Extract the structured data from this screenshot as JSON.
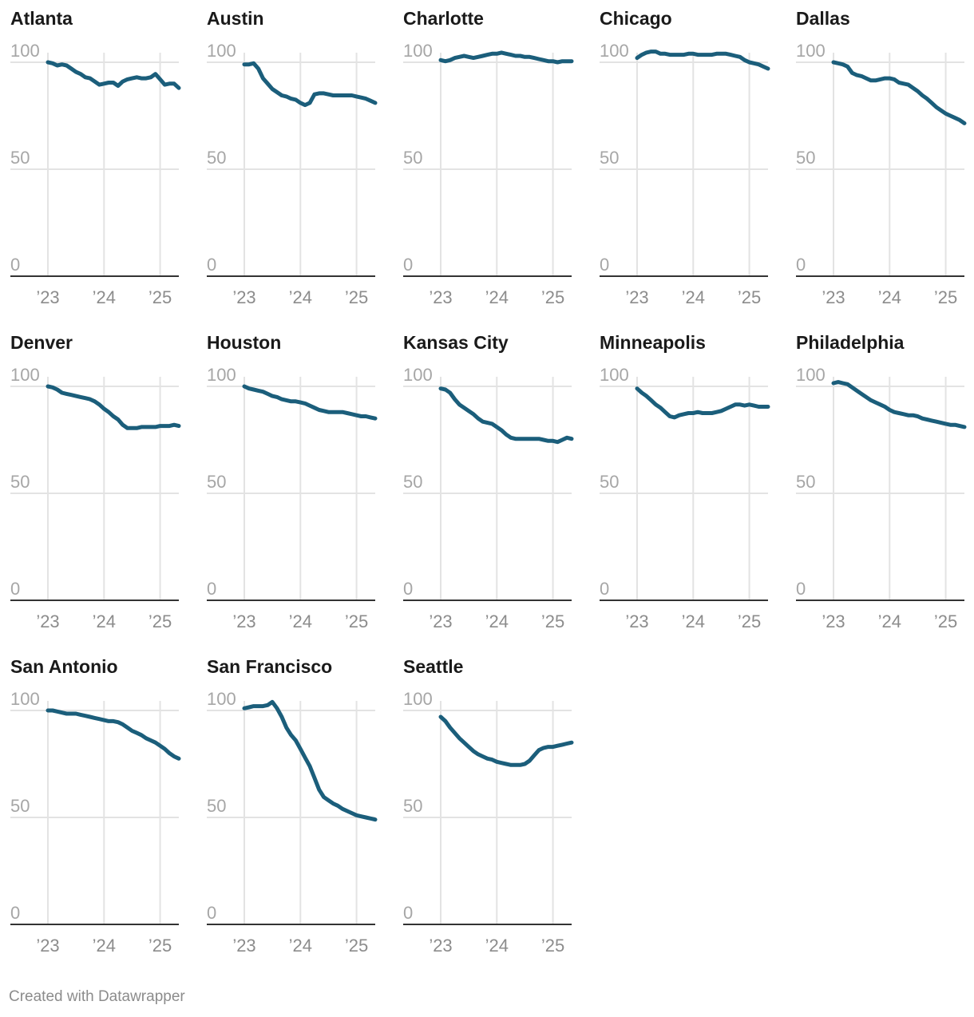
{
  "chart_data": {
    "type": "line",
    "layout": "small-multiples",
    "y_ticks": [
      100,
      50,
      0
    ],
    "ylim": [
      0,
      100
    ],
    "x_tick_labels": [
      "’23",
      "’24",
      "’25"
    ],
    "x_tick_values": [
      0,
      12,
      24
    ],
    "x_range": [
      0,
      28
    ],
    "line_color": "#1b5e7b",
    "panels": [
      {
        "name": "Atlanta",
        "x": [
          0,
          1,
          2,
          3,
          4,
          5,
          6,
          7,
          8,
          9,
          10,
          11,
          12,
          13,
          14,
          15,
          16,
          17,
          18,
          19,
          20,
          21,
          22,
          23,
          24,
          25,
          26,
          27,
          28
        ],
        "values": [
          100,
          99.5,
          98.5,
          99,
          98.5,
          97,
          95.5,
          94.5,
          93,
          92.5,
          91,
          89.5,
          90,
          90.5,
          90.5,
          89,
          91,
          92,
          92.5,
          93,
          92.5,
          92.5,
          93,
          94.5,
          92,
          89.5,
          90,
          90,
          88
        ]
      },
      {
        "name": "Austin",
        "x": [
          0,
          1,
          2,
          3,
          4,
          5,
          6,
          7,
          8,
          9,
          10,
          11,
          12,
          13,
          14,
          15,
          16,
          17,
          18,
          19,
          20,
          21,
          22,
          23,
          24,
          25,
          26,
          27,
          28
        ],
        "values": [
          99,
          99,
          99.5,
          97,
          92.5,
          90,
          87.5,
          86,
          84.5,
          84,
          83,
          82.5,
          81,
          80,
          81,
          85,
          85.5,
          85.5,
          85,
          84.5,
          84.5,
          84.5,
          84.5,
          84.5,
          84,
          83.5,
          83,
          82,
          81
        ]
      },
      {
        "name": "Charlotte",
        "x": [
          0,
          1,
          2,
          3,
          4,
          5,
          6,
          7,
          8,
          9,
          10,
          11,
          12,
          13,
          14,
          15,
          16,
          17,
          18,
          19,
          20,
          21,
          22,
          23,
          24,
          25,
          26,
          27,
          28
        ],
        "values": [
          101,
          100.5,
          101,
          102,
          102.5,
          103,
          102.5,
          102,
          102.5,
          103,
          103.5,
          104,
          104,
          104.5,
          104,
          103.5,
          103,
          103,
          102.5,
          102.5,
          102,
          101.5,
          101,
          100.5,
          100.5,
          100,
          100.5,
          100.5,
          100.5
        ]
      },
      {
        "name": "Chicago",
        "x": [
          0,
          1,
          2,
          3,
          4,
          5,
          6,
          7,
          8,
          9,
          10,
          11,
          12,
          13,
          14,
          15,
          16,
          17,
          18,
          19,
          20,
          21,
          22,
          23,
          24,
          25,
          26,
          27,
          28
        ],
        "values": [
          102,
          103.5,
          104.5,
          105,
          105,
          104,
          104,
          103.5,
          103.5,
          103.5,
          103.5,
          104,
          104,
          103.5,
          103.5,
          103.5,
          103.5,
          104,
          104,
          104,
          103.5,
          103,
          102.5,
          101,
          100,
          99.5,
          99,
          98,
          97
        ]
      },
      {
        "name": "Dallas",
        "x": [
          0,
          1,
          2,
          3,
          4,
          5,
          6,
          7,
          8,
          9,
          10,
          11,
          12,
          13,
          14,
          15,
          16,
          17,
          18,
          19,
          20,
          21,
          22,
          23,
          24,
          25,
          26,
          27,
          28
        ],
        "values": [
          100,
          99.5,
          99,
          98,
          95,
          94,
          93.5,
          92.5,
          91.5,
          91.5,
          92,
          92.5,
          92.5,
          92,
          90.5,
          90,
          89.5,
          88,
          86.5,
          84.5,
          83,
          81,
          79,
          77.5,
          76,
          75,
          74,
          73,
          71.5
        ]
      },
      {
        "name": "Denver",
        "x": [
          0,
          1,
          2,
          3,
          4,
          5,
          6,
          7,
          8,
          9,
          10,
          11,
          12,
          13,
          14,
          15,
          16,
          17,
          18,
          19,
          20,
          21,
          22,
          23,
          24,
          25,
          26,
          27,
          28
        ],
        "values": [
          100,
          99.5,
          98.5,
          97,
          96.5,
          96,
          95.5,
          95,
          94.5,
          94,
          93,
          91.5,
          89.5,
          88,
          86,
          84.5,
          82,
          80.5,
          80.5,
          80.5,
          81,
          81,
          81,
          81,
          81.5,
          81.5,
          81.5,
          82,
          81.5
        ]
      },
      {
        "name": "Houston",
        "x": [
          0,
          1,
          2,
          3,
          4,
          5,
          6,
          7,
          8,
          9,
          10,
          11,
          12,
          13,
          14,
          15,
          16,
          17,
          18,
          19,
          20,
          21,
          22,
          23,
          24,
          25,
          26,
          27,
          28
        ],
        "values": [
          100,
          99,
          98.5,
          98,
          97.5,
          96.5,
          95.5,
          95,
          94,
          93.5,
          93,
          93,
          92.5,
          92,
          91,
          90,
          89,
          88.5,
          88,
          88,
          88,
          88,
          87.5,
          87,
          86.5,
          86,
          86,
          85.5,
          85
        ]
      },
      {
        "name": "Kansas City",
        "x": [
          0,
          1,
          2,
          3,
          4,
          5,
          6,
          7,
          8,
          9,
          10,
          11,
          12,
          13,
          14,
          15,
          16,
          17,
          18,
          19,
          20,
          21,
          22,
          23,
          24,
          25,
          26,
          27,
          28
        ],
        "values": [
          99,
          98.5,
          97,
          94,
          91.5,
          90,
          88.5,
          87,
          85,
          83.5,
          83,
          82.5,
          81,
          79.5,
          77.5,
          76,
          75.5,
          75.5,
          75.5,
          75.5,
          75.5,
          75.5,
          75,
          74.5,
          74.5,
          74,
          75,
          76,
          75.5
        ]
      },
      {
        "name": "Minneapolis",
        "x": [
          0,
          1,
          2,
          3,
          4,
          5,
          6,
          7,
          8,
          9,
          10,
          11,
          12,
          13,
          14,
          15,
          16,
          17,
          18,
          19,
          20,
          21,
          22,
          23,
          24,
          25,
          26,
          27,
          28
        ],
        "values": [
          99,
          97,
          95.5,
          93.5,
          91.5,
          90,
          88,
          86,
          85.5,
          86.5,
          87,
          87.5,
          87.5,
          88,
          87.5,
          87.5,
          87.5,
          88,
          88.5,
          89.5,
          90.5,
          91.5,
          91.5,
          91,
          91.5,
          91,
          90.5,
          90.5,
          90.5
        ]
      },
      {
        "name": "Philadelphia",
        "x": [
          0,
          1,
          2,
          3,
          4,
          5,
          6,
          7,
          8,
          9,
          10,
          11,
          12,
          13,
          14,
          15,
          16,
          17,
          18,
          19,
          20,
          21,
          22,
          23,
          24,
          25,
          26,
          27,
          28
        ],
        "values": [
          101.5,
          102,
          101.5,
          101,
          99.5,
          98,
          96.5,
          95,
          93.5,
          92.5,
          91.5,
          90.5,
          89,
          88,
          87.5,
          87,
          86.5,
          86.5,
          86,
          85,
          84.5,
          84,
          83.5,
          83,
          82.5,
          82,
          82,
          81.5,
          81
        ]
      },
      {
        "name": "San Antonio",
        "x": [
          0,
          1,
          2,
          3,
          4,
          5,
          6,
          7,
          8,
          9,
          10,
          11,
          12,
          13,
          14,
          15,
          16,
          17,
          18,
          19,
          20,
          21,
          22,
          23,
          24,
          25,
          26,
          27,
          28
        ],
        "values": [
          100,
          100,
          99.5,
          99,
          98.5,
          98.5,
          98.5,
          98,
          97.5,
          97,
          96.5,
          96,
          95.5,
          95,
          95,
          94.5,
          93.5,
          92,
          90.5,
          89.5,
          88.5,
          87,
          86,
          85,
          83.5,
          82,
          80,
          78.5,
          77.5
        ]
      },
      {
        "name": "San Francisco",
        "x": [
          0,
          1,
          2,
          3,
          4,
          5,
          6,
          7,
          8,
          9,
          10,
          11,
          12,
          13,
          14,
          15,
          16,
          17,
          18,
          19,
          20,
          21,
          22,
          23,
          24,
          25,
          26,
          27,
          28
        ],
        "values": [
          101,
          101.5,
          102,
          102,
          102,
          102.5,
          104,
          101,
          97,
          92,
          88.5,
          86,
          82,
          78,
          74,
          68.5,
          63,
          59.5,
          58,
          56.5,
          55.5,
          54,
          53,
          52,
          51,
          50.5,
          50,
          49.5,
          49
        ]
      },
      {
        "name": "Seattle",
        "x": [
          0,
          1,
          2,
          3,
          4,
          5,
          6,
          7,
          8,
          9,
          10,
          11,
          12,
          13,
          14,
          15,
          16,
          17,
          18,
          19,
          20,
          21,
          22,
          23,
          24,
          25,
          26,
          27,
          28
        ],
        "values": [
          97,
          95,
          92,
          89.5,
          87,
          85,
          83,
          81,
          79.5,
          78.5,
          77.5,
          77,
          76,
          75.5,
          75,
          74.5,
          74.5,
          74.5,
          75,
          76.5,
          79,
          81.5,
          82.5,
          83,
          83,
          83.5,
          84,
          84.5,
          85
        ]
      }
    ]
  },
  "footer": "Created with Datawrapper"
}
